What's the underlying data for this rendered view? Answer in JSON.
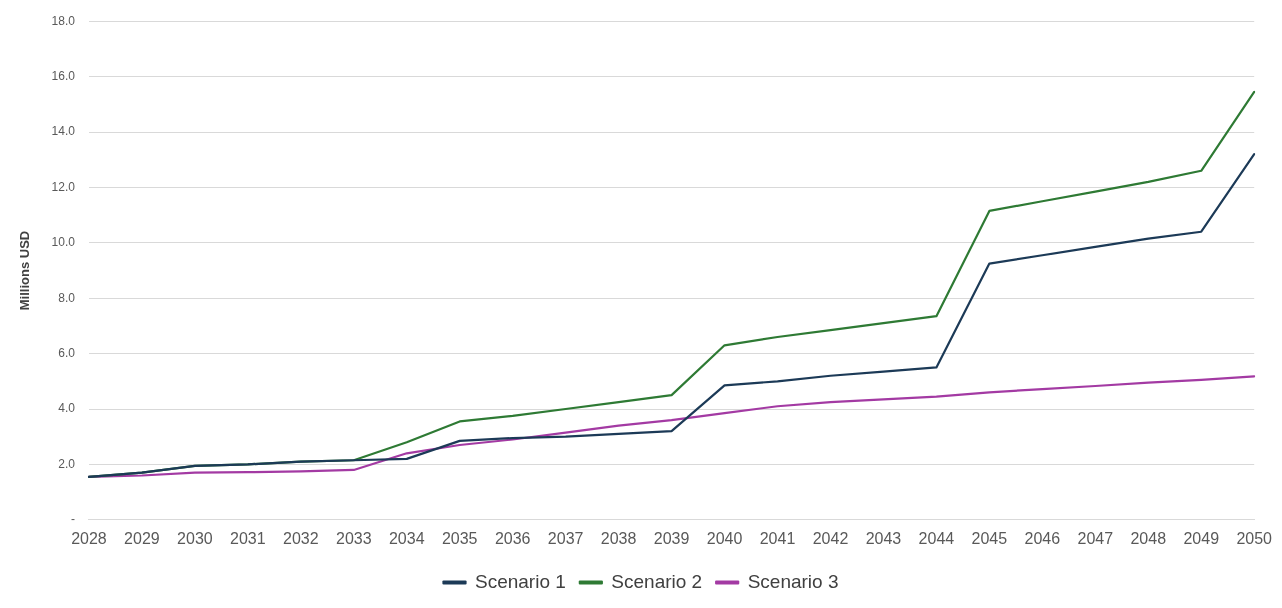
{
  "chart_data": {
    "type": "line",
    "ylabel": "Millions USD",
    "categories": [
      "2028",
      "2029",
      "2030",
      "2031",
      "2032",
      "2033",
      "2034",
      "2035",
      "2036",
      "2037",
      "2038",
      "2039",
      "2040",
      "2041",
      "2042",
      "2043",
      "2044",
      "2045",
      "2046",
      "2047",
      "2048",
      "2049",
      "2050"
    ],
    "series": [
      {
        "name": "Scenario 1",
        "color": "#1c3a57",
        "values": [
          1.55,
          1.7,
          1.95,
          2.0,
          2.1,
          2.15,
          2.2,
          2.85,
          2.95,
          3.0,
          3.1,
          3.2,
          4.85,
          5.0,
          5.2,
          5.35,
          5.5,
          9.25,
          9.55,
          9.85,
          10.15,
          10.4,
          13.2
        ]
      },
      {
        "name": "Scenario 2",
        "color": "#2e7a34",
        "values": [
          1.55,
          1.7,
          1.95,
          2.0,
          2.1,
          2.15,
          2.8,
          3.55,
          3.75,
          4.0,
          4.25,
          4.5,
          6.3,
          6.6,
          6.85,
          7.1,
          7.35,
          11.15,
          11.5,
          11.85,
          12.2,
          12.6,
          15.45
        ]
      },
      {
        "name": "Scenario 3",
        "color": "#a33aa3",
        "values": [
          1.55,
          1.6,
          1.7,
          1.72,
          1.75,
          1.8,
          2.4,
          2.7,
          2.9,
          3.15,
          3.4,
          3.6,
          3.85,
          4.1,
          4.25,
          4.35,
          4.45,
          4.6,
          4.72,
          4.83,
          4.95,
          5.05,
          5.18
        ]
      }
    ],
    "ylim": [
      0,
      18
    ],
    "yticks": [
      {
        "value": 0,
        "label": "-"
      },
      {
        "value": 2,
        "label": "2.0"
      },
      {
        "value": 4,
        "label": "4.0"
      },
      {
        "value": 6,
        "label": "6.0"
      },
      {
        "value": 8,
        "label": "8.0"
      },
      {
        "value": 10,
        "label": "10.0"
      },
      {
        "value": 12,
        "label": "12.0"
      },
      {
        "value": 14,
        "label": "14.0"
      },
      {
        "value": 16,
        "label": "16.0"
      },
      {
        "value": 18,
        "label": "18.0"
      }
    ],
    "grid": "y",
    "legend": "bottom",
    "marker": "none",
    "line_style": "solid"
  }
}
